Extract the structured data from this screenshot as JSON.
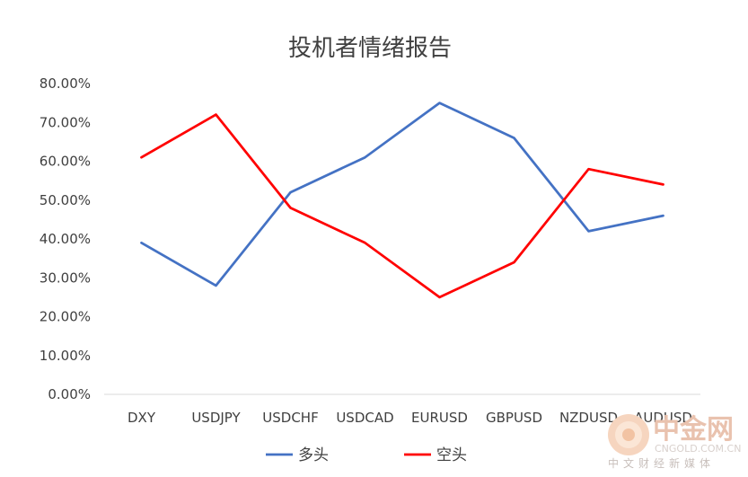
{
  "chart_data": {
    "type": "line",
    "title": "投机者情绪报告",
    "xlabel": "",
    "ylabel": "",
    "categories": [
      "DXY",
      "USDJPY",
      "USDCHF",
      "USDCAD",
      "EURUSD",
      "GBPUSD",
      "NZDUSD",
      "AUDUSD"
    ],
    "ylim": [
      0,
      0.8
    ],
    "yticks": [
      "0.00%",
      "10.00%",
      "20.00%",
      "30.00%",
      "40.00%",
      "50.00%",
      "60.00%",
      "70.00%",
      "80.00%"
    ],
    "grid": false,
    "legend_position": "bottom",
    "series": [
      {
        "name": "多头",
        "color": "#4472c4",
        "values": [
          0.39,
          0.28,
          0.52,
          0.61,
          0.75,
          0.66,
          0.42,
          0.46
        ]
      },
      {
        "name": "空头",
        "color": "#ff0000",
        "values": [
          0.61,
          0.72,
          0.48,
          0.39,
          0.25,
          0.34,
          0.58,
          0.54
        ]
      }
    ]
  },
  "watermark": {
    "brand": "中金网",
    "domain": "CNGOLD.COM.CN",
    "tagline": "中文财经新媒体"
  }
}
